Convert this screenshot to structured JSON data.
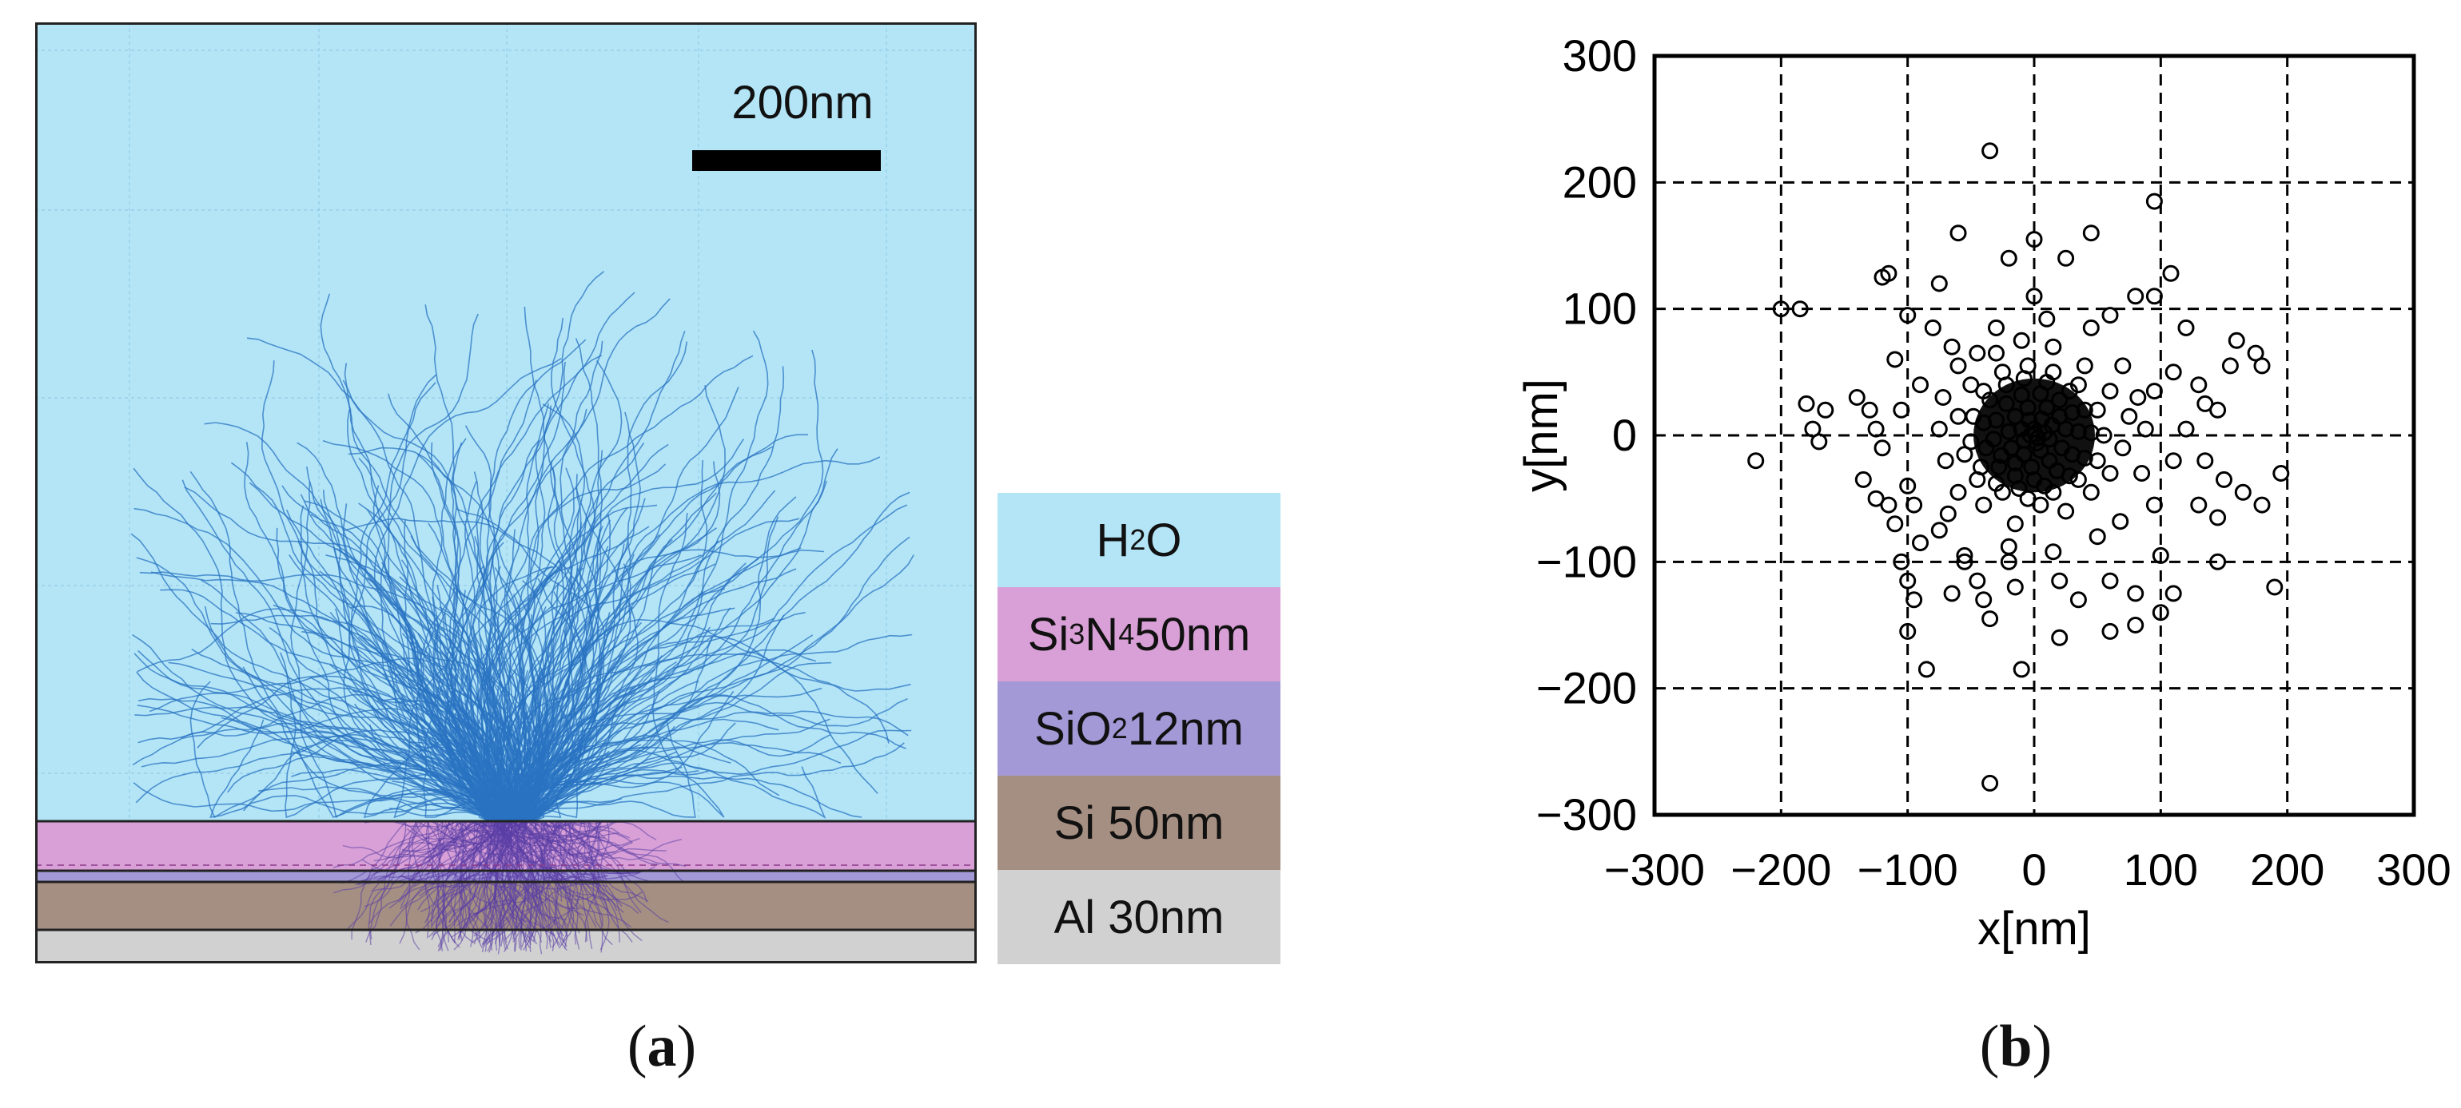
{
  "panel_a": {
    "scale_label": "200nm",
    "caption_letter": "a",
    "colors": {
      "water": "#b3e5f7",
      "si3n4": "#d8a0d6",
      "sio2": "#a299d6",
      "si": "#a48f82",
      "al": "#d1d1d1",
      "trajectory": "#2a73c2",
      "frame": "#222222"
    },
    "legend": [
      {
        "parts": [
          [
            "H",
            ""
          ],
          [
            "2",
            "sub"
          ],
          [
            "O",
            ""
          ]
        ],
        "color": "#b3e5f7"
      },
      {
        "parts": [
          [
            "Si",
            ""
          ],
          [
            "3",
            "sub"
          ],
          [
            "N",
            ""
          ],
          [
            "4",
            "sub"
          ],
          [
            " 50nm",
            ""
          ]
        ],
        "color": "#d8a0d6"
      },
      {
        "parts": [
          [
            "SiO",
            ""
          ],
          [
            "2",
            "sub"
          ],
          [
            " 12nm",
            ""
          ]
        ],
        "color": "#a299d6"
      },
      {
        "parts": [
          [
            "Si 50nm",
            ""
          ]
        ],
        "color": "#a48f82"
      },
      {
        "parts": [
          [
            "Al 30nm",
            ""
          ]
        ],
        "color": "#d1d1d1"
      }
    ]
  },
  "chart_data": {
    "type": "scatter",
    "title": "",
    "xlabel": "x[nm]",
    "ylabel": "y[nm]",
    "xlim": [
      -300,
      300
    ],
    "ylim": [
      -300,
      300
    ],
    "xticks": [
      -300,
      -200,
      -100,
      0,
      100,
      200,
      300
    ],
    "yticks": [
      -300,
      -200,
      -100,
      0,
      100,
      200,
      300
    ],
    "xtick_labels": [
      "−300",
      "−200",
      "−100",
      "0",
      "100",
      "200",
      "300"
    ],
    "ytick_labels": [
      "−300",
      "−200",
      "−100",
      "0",
      "100",
      "200",
      "300"
    ],
    "grid": "dashed",
    "marker": "open-circle",
    "caption_letter": "b",
    "points": [
      [
        -35,
        225
      ],
      [
        95,
        185
      ],
      [
        -200,
        100
      ],
      [
        -185,
        100
      ],
      [
        -120,
        125
      ],
      [
        -115,
        128
      ],
      [
        108,
        128
      ],
      [
        95,
        110
      ],
      [
        -75,
        120
      ],
      [
        45,
        160
      ],
      [
        -60,
        160
      ],
      [
        25,
        140
      ],
      [
        0,
        155
      ],
      [
        -20,
        140
      ],
      [
        80,
        110
      ],
      [
        -100,
        95
      ],
      [
        -80,
        85
      ],
      [
        120,
        85
      ],
      [
        160,
        75
      ],
      [
        175,
        65
      ],
      [
        155,
        55
      ],
      [
        180,
        55
      ],
      [
        -180,
        25
      ],
      [
        -165,
        20
      ],
      [
        -175,
        5
      ],
      [
        -140,
        30
      ],
      [
        -130,
        20
      ],
      [
        -125,
        5
      ],
      [
        -105,
        20
      ],
      [
        -60,
        55
      ],
      [
        -45,
        65
      ],
      [
        70,
        55
      ],
      [
        110,
        50
      ],
      [
        95,
        35
      ],
      [
        130,
        40
      ],
      [
        135,
        25
      ],
      [
        145,
        20
      ],
      [
        -220,
        -20
      ],
      [
        -170,
        -5
      ],
      [
        -135,
        -35
      ],
      [
        -125,
        -50
      ],
      [
        -115,
        -55
      ],
      [
        -100,
        -40
      ],
      [
        -95,
        -55
      ],
      [
        -60,
        -45
      ],
      [
        135,
        -20
      ],
      [
        150,
        -35
      ],
      [
        130,
        -55
      ],
      [
        165,
        -45
      ],
      [
        195,
        -30
      ],
      [
        180,
        -55
      ],
      [
        145,
        -65
      ],
      [
        -110,
        -70
      ],
      [
        -90,
        -85
      ],
      [
        -75,
        -75
      ],
      [
        -55,
        -95
      ],
      [
        -105,
        -100
      ],
      [
        -95,
        -130
      ],
      [
        -100,
        -155
      ],
      [
        -85,
        -185
      ],
      [
        -100,
        -115
      ],
      [
        -65,
        -125
      ],
      [
        -40,
        -130
      ],
      [
        -45,
        -115
      ],
      [
        -20,
        -100
      ],
      [
        -35,
        -145
      ],
      [
        20,
        -115
      ],
      [
        35,
        -130
      ],
      [
        60,
        -115
      ],
      [
        80,
        -125
      ],
      [
        100,
        -95
      ],
      [
        110,
        -125
      ],
      [
        145,
        -100
      ],
      [
        190,
        -120
      ],
      [
        80,
        -150
      ],
      [
        100,
        -140
      ],
      [
        60,
        -155
      ],
      [
        20,
        -160
      ],
      [
        -10,
        -185
      ],
      [
        -35,
        -275
      ],
      [
        -40,
        -55
      ],
      [
        -15,
        -70
      ],
      [
        5,
        -55
      ],
      [
        25,
        -60
      ],
      [
        45,
        -45
      ],
      [
        60,
        -30
      ],
      [
        70,
        -10
      ],
      [
        75,
        15
      ],
      [
        60,
        35
      ],
      [
        40,
        55
      ],
      [
        15,
        70
      ],
      [
        -10,
        75
      ],
      [
        -30,
        65
      ],
      [
        -50,
        40
      ],
      [
        -60,
        15
      ],
      [
        -55,
        -15
      ],
      [
        -45,
        -35
      ],
      [
        -25,
        -45
      ],
      [
        -5,
        -50
      ],
      [
        15,
        -45
      ],
      [
        35,
        -35
      ],
      [
        50,
        -20
      ],
      [
        55,
        0
      ],
      [
        50,
        20
      ],
      [
        35,
        40
      ],
      [
        15,
        50
      ],
      [
        -5,
        55
      ],
      [
        -25,
        50
      ],
      [
        -40,
        35
      ],
      [
        -48,
        15
      ],
      [
        -50,
        -5
      ],
      [
        -42,
        -25
      ],
      [
        -30,
        -38
      ],
      [
        -12,
        -42
      ],
      [
        8,
        -40
      ],
      [
        28,
        -32
      ],
      [
        40,
        -18
      ],
      [
        45,
        2
      ],
      [
        40,
        20
      ],
      [
        28,
        35
      ],
      [
        10,
        42
      ],
      [
        -8,
        45
      ],
      [
        -22,
        40
      ],
      [
        -35,
        28
      ],
      [
        -40,
        10
      ],
      [
        -38,
        -10
      ],
      [
        -28,
        -25
      ],
      [
        -15,
        -32
      ],
      [
        0,
        -35
      ],
      [
        18,
        -28
      ],
      [
        30,
        -15
      ],
      [
        35,
        3
      ],
      [
        30,
        18
      ],
      [
        20,
        28
      ],
      [
        5,
        33
      ],
      [
        -10,
        32
      ],
      [
        -22,
        25
      ],
      [
        -30,
        12
      ],
      [
        -32,
        -3
      ],
      [
        -26,
        -16
      ],
      [
        -15,
        -22
      ],
      [
        -2,
        -25
      ],
      [
        12,
        -20
      ],
      [
        22,
        -10
      ],
      [
        25,
        5
      ],
      [
        20,
        15
      ],
      [
        10,
        22
      ],
      [
        -5,
        22
      ],
      [
        -15,
        15
      ],
      [
        -20,
        3
      ],
      [
        -18,
        -10
      ],
      [
        -8,
        -15
      ],
      [
        5,
        -12
      ],
      [
        12,
        -3
      ],
      [
        14,
        8
      ],
      [
        6,
        13
      ],
      [
        -4,
        12
      ],
      [
        -10,
        5
      ],
      [
        -8,
        -4
      ],
      [
        2,
        -6
      ],
      [
        8,
        2
      ],
      [
        0,
        5
      ],
      [
        -3,
        0
      ],
      [
        3,
        -2
      ],
      [
        1,
        1
      ],
      [
        -70,
        -20
      ],
      [
        -75,
        5
      ],
      [
        -72,
        30
      ],
      [
        85,
        -30
      ],
      [
        88,
        5
      ],
      [
        82,
        30
      ],
      [
        -30,
        85
      ],
      [
        10,
        92
      ],
      [
        45,
        85
      ],
      [
        -20,
        -88
      ],
      [
        15,
        -92
      ],
      [
        50,
        -80
      ],
      [
        -65,
        70
      ],
      [
        68,
        -68
      ],
      [
        -68,
        -62
      ],
      [
        -90,
        40
      ],
      [
        95,
        -55
      ],
      [
        -120,
        -10
      ],
      [
        120,
        5
      ],
      [
        0,
        110
      ],
      [
        -15,
        -120
      ],
      [
        60,
        95
      ],
      [
        -55,
        -100
      ],
      [
        110,
        -20
      ],
      [
        -110,
        60
      ]
    ]
  }
}
